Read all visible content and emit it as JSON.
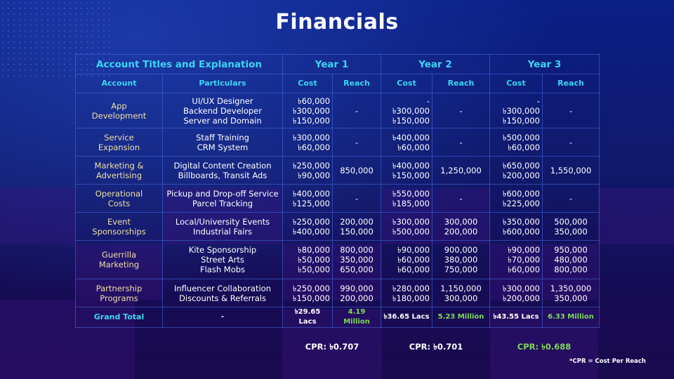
{
  "page": {
    "title": "Financials"
  },
  "table": {
    "header_title": "Account Titles and Explanation",
    "years": [
      "Year 1",
      "Year 2",
      "Year 3"
    ],
    "col_account": "Account",
    "col_particulars": "Particulars",
    "col_cost": "Cost",
    "col_reach": "Reach",
    "rows": [
      {
        "account": [
          "App",
          "Development"
        ],
        "particulars": [
          "UI/UX Designer",
          "Backend Developer",
          "Server and Domain"
        ],
        "y1_cost": [
          "৳60,000",
          "৳300,000",
          "৳150,000"
        ],
        "y1_reach": [
          "-"
        ],
        "y2_cost": [
          "-",
          "৳300,000",
          "৳150,000"
        ],
        "y2_reach": [
          "-"
        ],
        "y3_cost": [
          "-",
          "৳300,000",
          "৳150,000"
        ],
        "y3_reach": [
          "-"
        ]
      },
      {
        "account": [
          "Service",
          "Expansion"
        ],
        "particulars": [
          "Staff Training",
          "CRM System"
        ],
        "y1_cost": [
          "৳300,000",
          "৳60,000"
        ],
        "y1_reach": [
          "-"
        ],
        "y2_cost": [
          "৳400,000",
          "৳60,000"
        ],
        "y2_reach": [
          "-"
        ],
        "y3_cost": [
          "৳500,000",
          "৳60,000"
        ],
        "y3_reach": [
          "-"
        ]
      },
      {
        "account": [
          "Marketing &",
          "Advertising"
        ],
        "particulars": [
          "Digital Content Creation",
          "Billboards, Transit Ads"
        ],
        "y1_cost": [
          "৳250,000",
          "৳90,000"
        ],
        "y1_reach": [
          "850,000"
        ],
        "y2_cost": [
          "৳400,000",
          "৳150,000"
        ],
        "y2_reach": [
          "1,250,000"
        ],
        "y3_cost": [
          "৳650,000",
          "৳200,000"
        ],
        "y3_reach": [
          "1,550,000"
        ]
      },
      {
        "account": [
          "Operational",
          "Costs"
        ],
        "particulars": [
          "Pickup and Drop-off Service",
          "Parcel Tracking"
        ],
        "y1_cost": [
          "৳400,000",
          "৳125,000"
        ],
        "y1_reach": [
          "-"
        ],
        "y2_cost": [
          "৳550,000",
          "৳185,000"
        ],
        "y2_reach": [
          "-"
        ],
        "y3_cost": [
          "৳600,000",
          "৳225,000"
        ],
        "y3_reach": [
          "-"
        ]
      },
      {
        "account": [
          "Event",
          "Sponsorships"
        ],
        "particulars": [
          "Local/University Events",
          "Industrial Fairs"
        ],
        "y1_cost": [
          "৳250,000",
          "৳400,000"
        ],
        "y1_reach": [
          "200,000",
          "150,000"
        ],
        "y2_cost": [
          "৳300,000",
          "৳500,000"
        ],
        "y2_reach": [
          "300,000",
          "200,000"
        ],
        "y3_cost": [
          "৳350,000",
          "৳600,000"
        ],
        "y3_reach": [
          "500,000",
          "350,000"
        ]
      },
      {
        "account": [
          "Guerrilla",
          "Marketing"
        ],
        "particulars": [
          "Kite Sponsorship",
          "Street Arts",
          "Flash Mobs"
        ],
        "y1_cost": [
          "৳80,000",
          "৳50,000",
          "৳50,000"
        ],
        "y1_reach": [
          "800,000",
          "350,000",
          "650,000"
        ],
        "y2_cost": [
          "৳90,000",
          "৳60,000",
          "৳60,000"
        ],
        "y2_reach": [
          "900,000",
          "380,000",
          "750,000"
        ],
        "y3_cost": [
          "৳90,000",
          "৳70,000",
          "৳60,000"
        ],
        "y3_reach": [
          "950,000",
          "480,000",
          "800,000"
        ]
      },
      {
        "account": [
          "Partnership",
          "Programs"
        ],
        "particulars": [
          "Influencer Collaboration",
          "Discounts & Referrals"
        ],
        "y1_cost": [
          "৳250,000",
          "৳150,000"
        ],
        "y1_reach": [
          "990,000",
          "200,000"
        ],
        "y2_cost": [
          "৳280,000",
          "৳180,000"
        ],
        "y2_reach": [
          "1,150,000",
          "300,000"
        ],
        "y3_cost": [
          "৳300,000",
          "৳200,000"
        ],
        "y3_reach": [
          "1,350,000",
          "350,000"
        ]
      }
    ],
    "grand_total": {
      "label": "Grand Total",
      "particulars": "-",
      "y1_cost": "৳29.65 Lacs",
      "y1_reach": "4.19 Million",
      "y2_cost": "৳36.65 Lacs",
      "y2_reach": "5.23 Million",
      "y3_cost": "৳43.55 Lacs",
      "y3_reach": "6.33 Million"
    }
  },
  "cpr": {
    "y1": "CPR: ৳0.707",
    "y2": "CPR: ৳0.701",
    "y3": "CPR: ৳0.688",
    "note": "*CPR = Cost Per Reach"
  },
  "colors": {
    "accent_cyan": "#3ad6f2",
    "account_gold": "#f1dfa0",
    "highlight_green": "#7ed957",
    "background": "#0b1f86"
  }
}
